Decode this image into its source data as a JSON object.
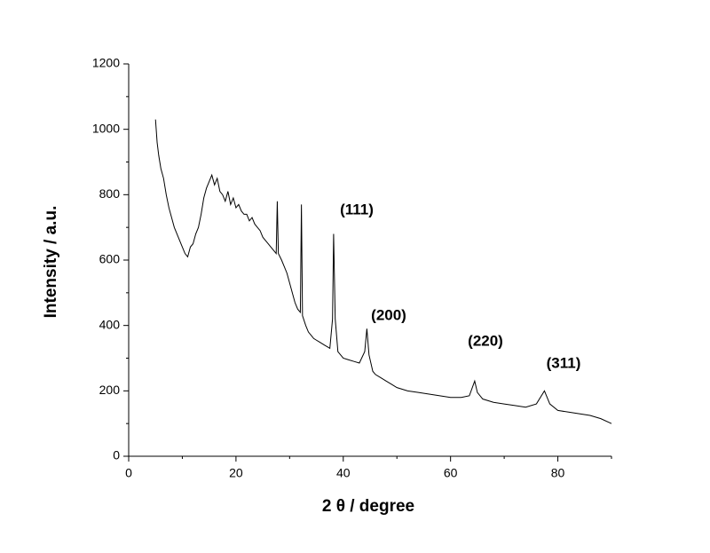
{
  "chart_data": {
    "type": "line",
    "x_label": "2 θ  / degree",
    "y_label": "Intensity / a.u.",
    "annotations": [
      "(111)",
      "(200)",
      "(220)",
      "(311)"
    ],
    "xlim": [
      0,
      90
    ],
    "xticks": [
      0,
      20,
      40,
      60,
      80
    ],
    "ylim": [
      0,
      1200
    ],
    "yticks": [
      0,
      200,
      400,
      600,
      800,
      1000,
      1200
    ],
    "series": [
      {
        "color": "#000000",
        "x": [
          5,
          5.3,
          5.6,
          6,
          6.5,
          7,
          7.5,
          8,
          8.5,
          9,
          9.5,
          10,
          10.5,
          11,
          11.5,
          12,
          12.5,
          13,
          13.5,
          14,
          14.5,
          15,
          15.5,
          16,
          16.5,
          17,
          17.5,
          18,
          18.5,
          19,
          19.5,
          20,
          20.5,
          21,
          21.5,
          22,
          22.5,
          23,
          23.5,
          24,
          24.5,
          25,
          25.5,
          26,
          26.5,
          27,
          27.5,
          27.7,
          27.9,
          28.5,
          29,
          29.5,
          30,
          30.5,
          31,
          31.5,
          32,
          32.2,
          32.4,
          33,
          33.5,
          34,
          34.5,
          35,
          35.5,
          36,
          36.5,
          37,
          37.5,
          38,
          38.2,
          38.5,
          39,
          39.5,
          40,
          41,
          42,
          43,
          44,
          44.4,
          44.8,
          45.5,
          46,
          47,
          48,
          49,
          50,
          52,
          54,
          56,
          58,
          60,
          62,
          63.5,
          64.5,
          65,
          66,
          68,
          70,
          72,
          74,
          76,
          77.5,
          78.5,
          80,
          82,
          84,
          86,
          88,
          90
        ],
        "values": [
          1030,
          960,
          920,
          880,
          850,
          800,
          760,
          730,
          700,
          680,
          660,
          640,
          620,
          610,
          640,
          650,
          680,
          700,
          740,
          790,
          820,
          840,
          860,
          830,
          850,
          810,
          800,
          780,
          810,
          770,
          790,
          760,
          770,
          750,
          740,
          740,
          720,
          730,
          710,
          700,
          690,
          670,
          660,
          650,
          640,
          630,
          620,
          780,
          620,
          600,
          580,
          560,
          530,
          500,
          470,
          450,
          440,
          770,
          430,
          400,
          380,
          370,
          360,
          355,
          350,
          345,
          340,
          335,
          330,
          420,
          680,
          420,
          320,
          310,
          300,
          295,
          290,
          285,
          320,
          390,
          310,
          260,
          250,
          240,
          230,
          220,
          210,
          200,
          195,
          190,
          185,
          180,
          180,
          185,
          230,
          195,
          175,
          165,
          160,
          155,
          150,
          160,
          200,
          160,
          140,
          135,
          130,
          125,
          115,
          100
        ]
      }
    ]
  }
}
